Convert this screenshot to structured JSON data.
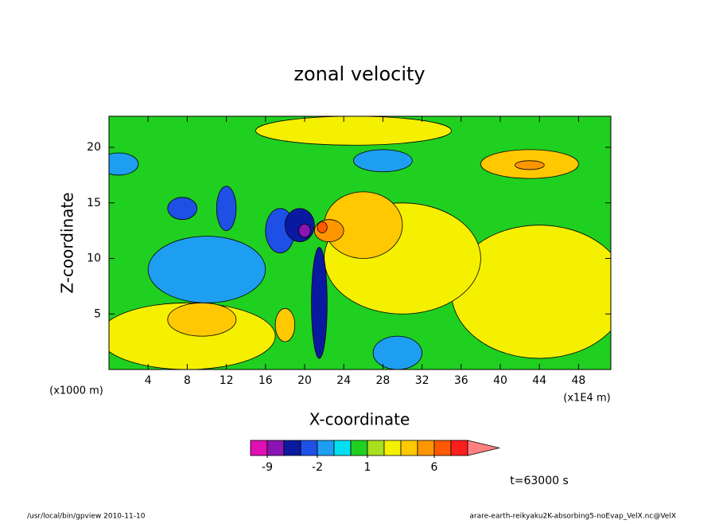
{
  "chart_data": {
    "type": "contour",
    "title": "zonal velocity",
    "x_label": "X-coordinate",
    "y_label": "Z-coordinate",
    "x_unit_label": "(x1000 m)",
    "x_scale_label": "(x1E4 m)",
    "time_label": "t=63000 s",
    "footer_left": "/usr/local/bin/gpview  2010-11-10",
    "footer_right": "arare-earth-reikyaku2K-absorbing5-noEvap_VelX.nc@VelX",
    "xlim": [
      0,
      51.3
    ],
    "ylim": [
      0,
      22.8
    ],
    "xticks": [
      4,
      8,
      12,
      16,
      20,
      24,
      28,
      32,
      36,
      40,
      44,
      48
    ],
    "yticks": [
      5,
      10,
      15,
      20
    ],
    "levels": [
      -12,
      -9,
      -6,
      -3,
      -2,
      -1,
      0,
      1,
      2,
      3,
      4,
      6,
      9,
      12
    ],
    "colors": [
      "#e010b4",
      "#8c14b4",
      "#0a1aa0",
      "#1e50e6",
      "#1e9ef0",
      "#00e0f0",
      "#20d020",
      "#a8e020",
      "#f5f000",
      "#ffc800",
      "#ff9600",
      "#ff5a00",
      "#ff1e1e"
    ],
    "extend_color": "#ff8080",
    "colorbar_ticks": [
      -9,
      -2,
      1,
      6
    ],
    "background_value": 0.5,
    "field": [
      {
        "x": 8,
        "z": 3,
        "rx": 9,
        "rz": 3,
        "value": 2.5
      },
      {
        "x": 44,
        "z": 7,
        "rx": 9,
        "rz": 6,
        "value": 2.5
      },
      {
        "x": 30,
        "z": 10,
        "rx": 8,
        "rz": 5,
        "value": 2.5
      },
      {
        "x": 25,
        "z": 21.5,
        "rx": 10,
        "rz": 1.3,
        "value": 2.5
      },
      {
        "x": 10,
        "z": 9,
        "rx": 6,
        "rz": 3,
        "value": -1.5
      },
      {
        "x": 9.5,
        "z": 4.5,
        "rx": 3.5,
        "rz": 1.5,
        "value": 3.5
      },
      {
        "x": 1,
        "z": 18.5,
        "rx": 2,
        "rz": 1,
        "value": -1.5
      },
      {
        "x": 28,
        "z": 18.8,
        "rx": 3,
        "rz": 1,
        "value": -1.5
      },
      {
        "x": 29.5,
        "z": 1.5,
        "rx": 2.5,
        "rz": 1.5,
        "value": -1.5
      },
      {
        "x": 7.5,
        "z": 14.5,
        "rx": 1.5,
        "rz": 1,
        "value": -2.5
      },
      {
        "x": 12,
        "z": 14.5,
        "rx": 1,
        "rz": 2,
        "value": -2.5
      },
      {
        "x": 17.5,
        "z": 12.5,
        "rx": 1.5,
        "rz": 2,
        "value": -2.5
      },
      {
        "x": 19.5,
        "z": 13,
        "rx": 1.5,
        "rz": 1.5,
        "value": -4.5
      },
      {
        "x": 20,
        "z": 12.5,
        "rx": 0.6,
        "rz": 0.6,
        "value": -7
      },
      {
        "x": 26,
        "z": 13,
        "rx": 4,
        "rz": 3,
        "value": 3.5
      },
      {
        "x": 22.5,
        "z": 12.5,
        "rx": 1.5,
        "rz": 1,
        "value": 5
      },
      {
        "x": 21.8,
        "z": 12.8,
        "rx": 0.5,
        "rz": 0.5,
        "value": 7
      },
      {
        "x": 43,
        "z": 18.5,
        "rx": 5,
        "rz": 1.3,
        "value": 3.5
      },
      {
        "x": 43,
        "z": 18.4,
        "rx": 1.5,
        "rz": 0.4,
        "value": 5
      },
      {
        "x": 18,
        "z": 4,
        "rx": 1,
        "rz": 1.5,
        "value": 3.5
      },
      {
        "x": 21.5,
        "z": 6,
        "rx": 0.8,
        "rz": 5,
        "value": -4.5
      }
    ]
  }
}
